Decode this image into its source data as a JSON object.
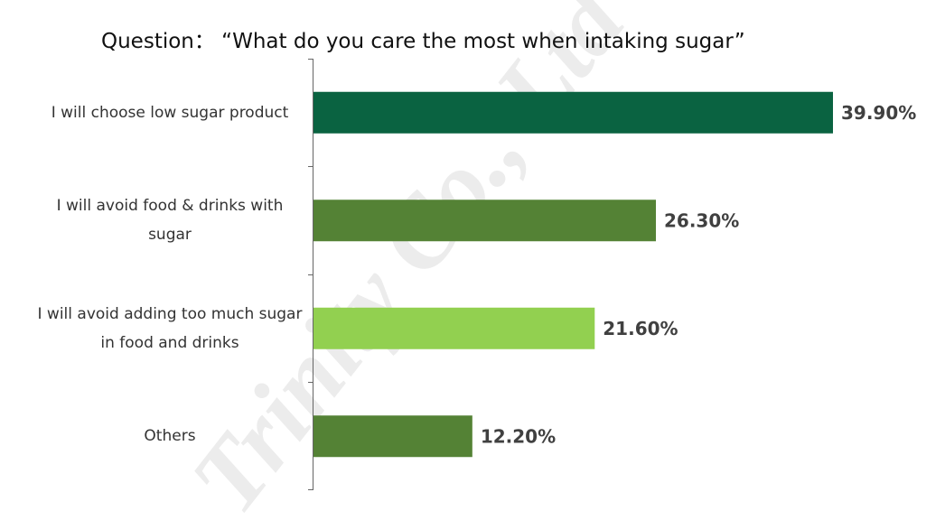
{
  "chart_data": {
    "type": "barh",
    "title": "Question：  “What do you care the most when intaking sugar”",
    "watermark": "Trinity Co., Ltd",
    "categories": [
      "I will choose low sugar product",
      "I will avoid food & drinks with sugar",
      "I will avoid adding too much sugar in food and drinks",
      "Others"
    ],
    "values": [
      39.9,
      26.3,
      21.6,
      12.2
    ],
    "value_labels": [
      "39.90%",
      "26.30%",
      "21.60%",
      "12.20%"
    ],
    "colors": [
      "#0a6341",
      "#548235",
      "#92d050",
      "#548235"
    ]
  }
}
